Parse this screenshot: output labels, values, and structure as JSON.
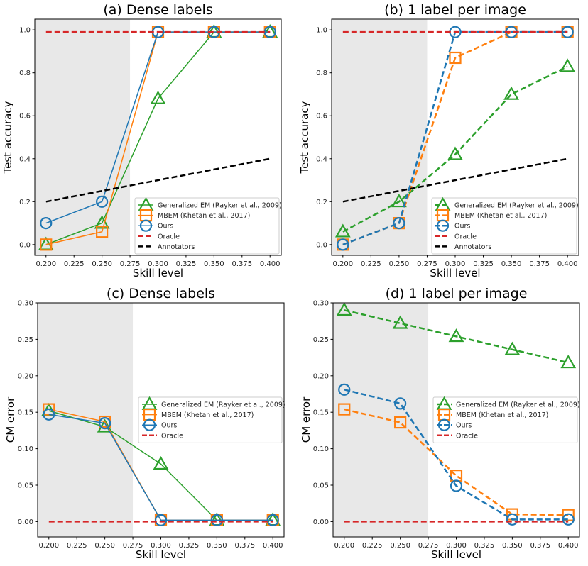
{
  "colors": {
    "gem": "#2ca02c",
    "mbem": "#ff7f0e",
    "ours": "#1f77b4",
    "oracle": "#d62728",
    "annotators": "#000000",
    "shade": "#e8e8e8"
  },
  "chart_data": [
    {
      "type": "line",
      "title": "(a) Dense labels",
      "xlabel": "Skill level",
      "ylabel": "Test accuracy",
      "x": [
        0.2,
        0.25,
        0.3,
        0.35,
        0.4
      ],
      "xlim": [
        0.19,
        0.41
      ],
      "ylim": [
        -0.05,
        1.05
      ],
      "xticks": [
        "0.200",
        "0.225",
        "0.250",
        "0.275",
        "0.300",
        "0.325",
        "0.350",
        "0.375",
        "0.400"
      ],
      "yticks": [
        "0.0",
        "0.2",
        "0.4",
        "0.6",
        "0.8",
        "1.0"
      ],
      "line_style": "solid",
      "shaded_x_max": 0.275,
      "legend_position": "lower-right",
      "series": [
        {
          "name": "Generalized EM (Rayker et al., 2009)",
          "key": "gem",
          "marker": "triangle",
          "values": [
            0.0,
            0.1,
            0.68,
            0.99,
            0.99
          ]
        },
        {
          "name": "MBEM (Khetan et al., 2017)",
          "key": "mbem",
          "marker": "square",
          "values": [
            0.0,
            0.06,
            0.99,
            0.99,
            0.99
          ]
        },
        {
          "name": "Ours",
          "key": "ours",
          "marker": "circle",
          "values": [
            0.1,
            0.2,
            0.99,
            0.99,
            0.99
          ]
        },
        {
          "name": "Oracle",
          "key": "oracle",
          "marker": "none",
          "dashed": true,
          "values": [
            0.99,
            0.99,
            0.99,
            0.99,
            0.99
          ]
        },
        {
          "name": "Annotators",
          "key": "annotators",
          "marker": "none",
          "dashed": true,
          "values": [
            0.2,
            0.25,
            0.3,
            0.35,
            0.4
          ]
        }
      ]
    },
    {
      "type": "line",
      "title": "(b) 1 label per image",
      "xlabel": "Skill level",
      "ylabel": "Test accuracy",
      "x": [
        0.2,
        0.25,
        0.3,
        0.35,
        0.4
      ],
      "xlim": [
        0.19,
        0.41
      ],
      "ylim": [
        -0.05,
        1.05
      ],
      "xticks": [
        "0.200",
        "0.225",
        "0.250",
        "0.275",
        "0.300",
        "0.325",
        "0.350",
        "0.375",
        "0.400"
      ],
      "yticks": [
        "0.0",
        "0.2",
        "0.4",
        "0.6",
        "0.8",
        "1.0"
      ],
      "line_style": "dashed",
      "shaded_x_max": 0.275,
      "legend_position": "lower-right",
      "series": [
        {
          "name": "Generalized EM (Rayker et al., 2009)",
          "key": "gem",
          "marker": "triangle",
          "values": [
            0.06,
            0.2,
            0.42,
            0.7,
            0.83
          ]
        },
        {
          "name": "MBEM (Khetan et al., 2017)",
          "key": "mbem",
          "marker": "square",
          "values": [
            0.0,
            0.1,
            0.87,
            0.99,
            0.99
          ]
        },
        {
          "name": "Ours",
          "key": "ours",
          "marker": "circle",
          "values": [
            0.0,
            0.1,
            0.99,
            0.99,
            0.99
          ]
        },
        {
          "name": "Oracle",
          "key": "oracle",
          "marker": "none",
          "dashed": true,
          "values": [
            0.99,
            0.99,
            0.99,
            0.99,
            0.99
          ]
        },
        {
          "name": "Annotators",
          "key": "annotators",
          "marker": "none",
          "dashed": true,
          "values": [
            0.2,
            0.25,
            0.3,
            0.35,
            0.4
          ]
        }
      ]
    },
    {
      "type": "line",
      "title": "(c) Dense labels",
      "xlabel": "Skill level",
      "ylabel": "CM error",
      "x": [
        0.2,
        0.25,
        0.3,
        0.35,
        0.4
      ],
      "xlim": [
        0.19,
        0.41
      ],
      "ylim": [
        -0.021,
        0.3
      ],
      "xticks": [
        "0.200",
        "0.225",
        "0.250",
        "0.275",
        "0.300",
        "0.325",
        "0.350",
        "0.375",
        "0.400"
      ],
      "yticks": [
        "0.00",
        "0.05",
        "0.10",
        "0.15",
        "0.20",
        "0.25",
        "0.30"
      ],
      "line_style": "solid",
      "shaded_x_max": 0.275,
      "legend_position": "center-right",
      "series": [
        {
          "name": "Generalized EM (Rayker et al., 2009)",
          "key": "gem",
          "marker": "triangle",
          "values": [
            0.152,
            0.13,
            0.079,
            0.002,
            0.002
          ]
        },
        {
          "name": "MBEM (Khetan et al., 2017)",
          "key": "mbem",
          "marker": "square",
          "values": [
            0.154,
            0.137,
            0.002,
            0.002,
            0.002
          ]
        },
        {
          "name": "Ours",
          "key": "ours",
          "marker": "circle",
          "values": [
            0.147,
            0.135,
            0.002,
            0.002,
            0.002
          ]
        },
        {
          "name": "Oracle",
          "key": "oracle",
          "marker": "none",
          "dashed": true,
          "values": [
            0,
            0,
            0,
            0,
            0
          ]
        }
      ]
    },
    {
      "type": "line",
      "title": "(d) 1 label per image",
      "xlabel": "Skill level",
      "ylabel": "CM error",
      "x": [
        0.2,
        0.25,
        0.3,
        0.35,
        0.4
      ],
      "xlim": [
        0.19,
        0.41
      ],
      "ylim": [
        -0.021,
        0.3
      ],
      "xticks": [
        "0.200",
        "0.225",
        "0.250",
        "0.275",
        "0.300",
        "0.325",
        "0.350",
        "0.375",
        "0.400"
      ],
      "yticks": [
        "0.00",
        "0.05",
        "0.10",
        "0.15",
        "0.20",
        "0.25",
        "0.30"
      ],
      "line_style": "dashed",
      "shaded_x_max": 0.275,
      "legend_position": "center-right",
      "series": [
        {
          "name": "Generalized EM (Rayker et al., 2009)",
          "key": "gem",
          "marker": "triangle",
          "values": [
            0.29,
            0.272,
            0.254,
            0.236,
            0.218
          ]
        },
        {
          "name": "MBEM (Khetan et al., 2017)",
          "key": "mbem",
          "marker": "square",
          "values": [
            0.154,
            0.136,
            0.063,
            0.01,
            0.009
          ]
        },
        {
          "name": "Ours",
          "key": "ours",
          "marker": "circle",
          "values": [
            0.181,
            0.162,
            0.049,
            0.003,
            0.003
          ]
        },
        {
          "name": "Oracle",
          "key": "oracle",
          "marker": "none",
          "dashed": true,
          "values": [
            0,
            0,
            0,
            0,
            0
          ]
        }
      ]
    }
  ]
}
